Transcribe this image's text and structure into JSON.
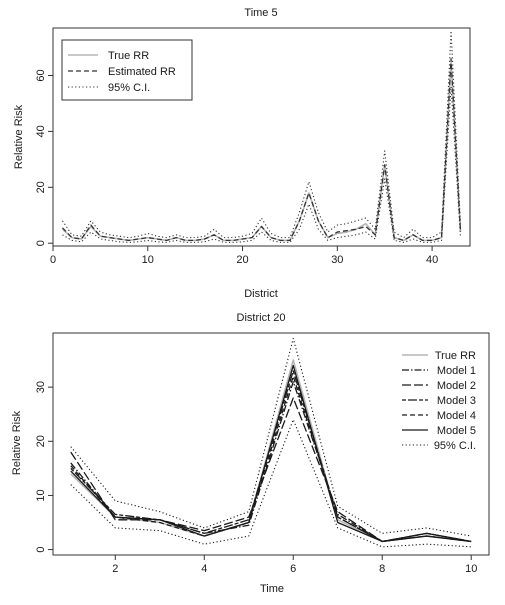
{
  "chart_data": [
    {
      "type": "line",
      "title": "Time 5",
      "xlabel": "District",
      "ylabel": "Relative Risk",
      "xlim": [
        0,
        44
      ],
      "ylim": [
        -1,
        77
      ],
      "x_ticks": [
        0,
        10,
        20,
        30,
        40
      ],
      "y_ticks": [
        0,
        20,
        40,
        60
      ],
      "grid": false,
      "legend_position": "top-left",
      "x": [
        1,
        2,
        3,
        4,
        5,
        6,
        7,
        8,
        9,
        10,
        11,
        12,
        13,
        14,
        15,
        16,
        17,
        18,
        19,
        20,
        21,
        22,
        23,
        24,
        25,
        26,
        27,
        28,
        29,
        30,
        31,
        32,
        33,
        34,
        35,
        36,
        37,
        38,
        39,
        40,
        41,
        42,
        43
      ],
      "series": [
        {
          "name": "True RR",
          "style": "solid",
          "color": "#b5b5b5",
          "values": [
            5,
            2,
            1.5,
            6,
            2.5,
            2,
            1.5,
            1,
            1.5,
            2,
            1.5,
            1,
            2,
            1,
            1,
            1.5,
            3,
            1,
            1,
            1.5,
            2,
            6,
            2,
            1,
            1,
            8,
            18,
            8,
            2,
            3.5,
            4,
            5,
            7,
            3,
            28,
            2,
            1,
            3,
            1,
            1,
            2,
            65,
            4
          ]
        },
        {
          "name": "Estimated RR",
          "style": "dashed",
          "color": "#333333",
          "values": [
            5.5,
            2,
            1.5,
            6.5,
            2.5,
            2,
            1.5,
            1,
            1.5,
            2,
            1.5,
            1,
            2,
            1,
            1,
            1.5,
            3,
            1,
            1,
            1.5,
            2,
            6,
            2,
            1,
            1,
            8,
            18,
            8,
            2,
            4,
            4.5,
            5,
            6,
            3,
            28,
            2,
            1,
            3,
            1,
            1,
            2,
            66,
            4
          ]
        },
        {
          "name": "95% C.I.",
          "style": "dotted",
          "color": "#333333",
          "values": [
            8,
            3,
            2.5,
            8,
            4,
            3,
            2.5,
            2,
            2.5,
            3.5,
            2.5,
            2,
            3,
            2,
            2,
            2.5,
            5,
            2,
            2,
            2.5,
            3.5,
            9,
            3.5,
            2,
            2,
            11,
            22,
            11,
            4,
            6.5,
            7,
            8,
            9,
            5,
            33,
            4,
            2,
            5,
            2,
            2,
            4,
            76,
            6
          ]
        },
        {
          "name": "95% C.I.",
          "style": "dotted",
          "color": "#333333",
          "values": [
            3,
            1,
            0.5,
            4,
            1.5,
            1,
            0.5,
            0.3,
            0.5,
            1,
            0.5,
            0.3,
            1,
            0.3,
            0.3,
            0.5,
            1.5,
            0.3,
            0.3,
            0.5,
            1,
            4,
            1,
            0.3,
            0.3,
            5,
            14,
            5,
            1,
            2,
            2.5,
            3,
            4,
            1.5,
            23,
            1,
            0.3,
            1.5,
            0.3,
            0.3,
            1,
            56,
            2
          ]
        }
      ],
      "legend": [
        "True RR",
        "Estimated RR",
        "95% C.I."
      ]
    },
    {
      "type": "line",
      "title": "District 20",
      "xlabel": "Time",
      "ylabel": "Relative Risk",
      "xlim": [
        0.6,
        10.4
      ],
      "ylim": [
        -1,
        40
      ],
      "x_ticks": [
        2,
        4,
        6,
        8,
        10
      ],
      "y_ticks": [
        0,
        10,
        20,
        30
      ],
      "grid": false,
      "legend_position": "top-right",
      "x": [
        1,
        2,
        3,
        4,
        5,
        6,
        7,
        8,
        9,
        10
      ],
      "series": [
        {
          "name": "True RR",
          "style": "solid",
          "color": "#b5b5b5",
          "values": [
            14,
            6,
            5,
            2.5,
            5,
            35,
            5.5,
            1.5,
            2.5,
            1.5
          ]
        },
        {
          "name": "Model 1",
          "style": "dashdot",
          "color": "#1a1a1a",
          "values": [
            16,
            6,
            5.5,
            3,
            4.5,
            31,
            6.5,
            1.5,
            3,
            1.5
          ]
        },
        {
          "name": "Model 2",
          "style": "longdash",
          "color": "#1a1a1a",
          "values": [
            18,
            5.5,
            5.5,
            3.5,
            6,
            28,
            7,
            1.5,
            3,
            1.5
          ]
        },
        {
          "name": "Model 3",
          "style": "twodash",
          "color": "#1a1a1a",
          "values": [
            15,
            6.5,
            5.5,
            3,
            5.5,
            33,
            6,
            1.5,
            3,
            1.5
          ]
        },
        {
          "name": "Model 4",
          "style": "dashed",
          "color": "#1a1a1a",
          "values": [
            15.5,
            6,
            5,
            2.5,
            5,
            32,
            6,
            1.5,
            2.5,
            1.5
          ]
        },
        {
          "name": "Model 5",
          "style": "solid",
          "color": "#1a1a1a",
          "values": [
            14.5,
            6,
            5.5,
            2.5,
            5,
            34,
            5,
            1.5,
            2.5,
            1.5
          ]
        },
        {
          "name": "95% C.I.",
          "style": "dotted",
          "color": "#1a1a1a",
          "values": [
            19,
            9,
            7,
            4,
            7,
            39,
            8,
            3,
            4,
            2.5
          ]
        },
        {
          "name": "95% C.I.",
          "style": "dotted",
          "color": "#1a1a1a",
          "values": [
            12,
            4,
            3.5,
            1,
            2.5,
            24,
            4,
            0.5,
            1,
            0.5
          ]
        }
      ],
      "legend": [
        "True RR",
        "Model 1",
        "Model 2",
        "Model 3",
        "Model 4",
        "Model 5",
        "95% C.I."
      ]
    }
  ]
}
